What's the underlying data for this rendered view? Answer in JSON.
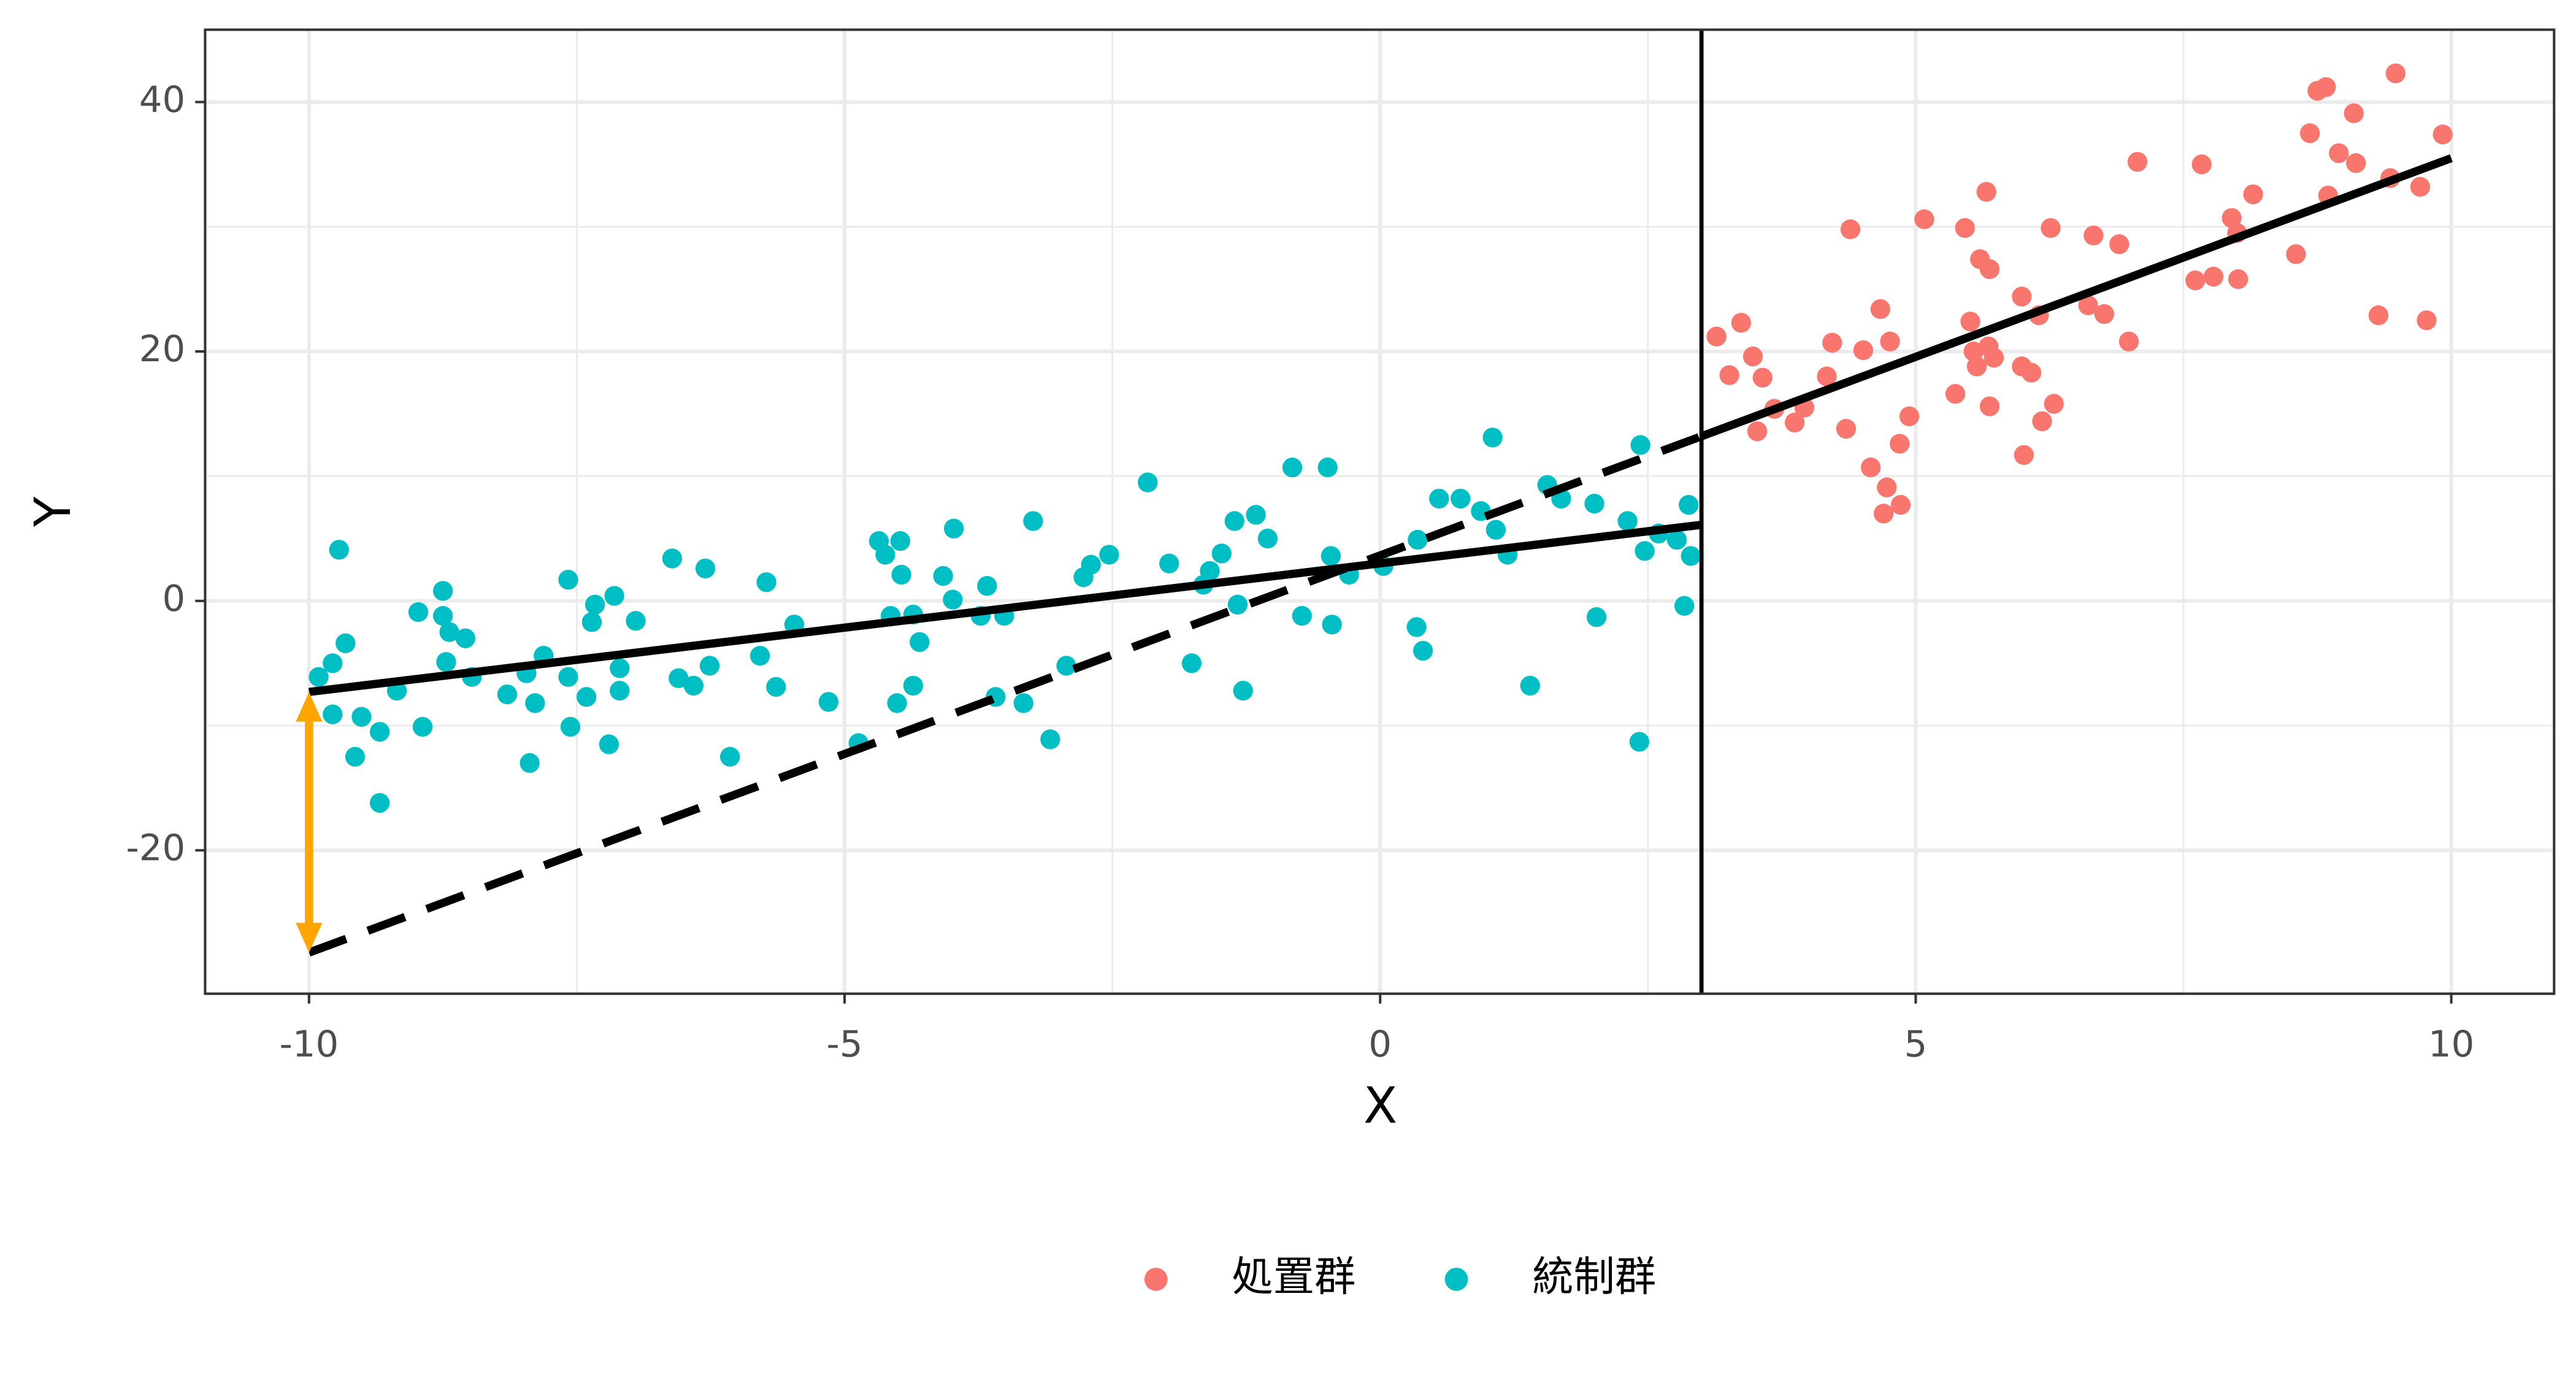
{
  "chart_data": {
    "type": "scatter",
    "x_label": "X",
    "y_label": "Y",
    "xlim": [
      -10.97,
      10.96
    ],
    "ylim": [
      -31.5,
      45.8
    ],
    "xticks": [
      -10,
      -5,
      0,
      5,
      10
    ],
    "yticks": [
      -20,
      0,
      20,
      40
    ],
    "minor_xticks": [
      -7.5,
      -2.5,
      2.5,
      7.5
    ],
    "minor_yticks": [
      -10,
      10,
      30
    ],
    "grid": true,
    "legend": "bottom",
    "series": [
      {
        "name": "処置群",
        "color": "#F8766D",
        "x": [
          3.14,
          3.26,
          3.37,
          3.48,
          3.52,
          3.57,
          3.68,
          3.87,
          3.96,
          4.17,
          4.22,
          4.35,
          4.39,
          4.51,
          4.58,
          4.67,
          4.7,
          4.73,
          4.76,
          4.85,
          4.86,
          4.94,
          5.08,
          5.37,
          5.46,
          5.51,
          5.54,
          5.57,
          5.6,
          5.66,
          5.68,
          5.69,
          5.69,
          5.73,
          5.99,
          5.99,
          6.01,
          6.08,
          6.15,
          6.18,
          6.26,
          6.29,
          6.61,
          6.66,
          6.76,
          6.9,
          6.99,
          7.07,
          7.67,
          7.61,
          7.78,
          7.95,
          8.0,
          8.01,
          8.15,
          8.55,
          8.68,
          8.75,
          8.83,
          8.85,
          8.95,
          9.09,
          9.11,
          9.32,
          9.43,
          9.48,
          9.71,
          9.77,
          9.92
        ],
        "values": [
          21.2,
          18.1,
          22.3,
          19.6,
          13.6,
          17.9,
          15.4,
          14.3,
          15.5,
          18.0,
          20.7,
          13.8,
          29.8,
          20.1,
          10.7,
          23.4,
          7.0,
          9.1,
          20.8,
          12.6,
          7.7,
          14.8,
          30.6,
          16.6,
          29.9,
          22.4,
          20.0,
          18.8,
          27.4,
          32.8,
          20.4,
          26.6,
          15.6,
          19.5,
          24.4,
          18.8,
          11.7,
          18.3,
          22.9,
          14.4,
          29.9,
          15.8,
          23.7,
          29.3,
          23.0,
          28.6,
          20.8,
          35.2,
          35.0,
          25.7,
          26.0,
          30.7,
          29.5,
          25.8,
          32.6,
          27.8,
          37.5,
          40.9,
          41.2,
          32.5,
          35.9,
          39.1,
          35.1,
          22.9,
          33.9,
          42.3,
          33.2,
          22.5,
          37.4
        ]
      },
      {
        "name": "統制群",
        "color": "#00BFC4",
        "x": [
          -9.91,
          -9.72,
          -9.78,
          -9.66,
          -9.78,
          -9.57,
          -9.51,
          -9.34,
          -9.34,
          -9.18,
          -8.98,
          -8.94,
          -8.75,
          -8.75,
          -8.69,
          -8.54,
          -8.72,
          -8.48,
          -8.15,
          -7.97,
          -7.94,
          -7.89,
          -7.81,
          -7.58,
          -7.58,
          -7.56,
          -7.41,
          -7.36,
          -7.33,
          -7.2,
          -7.15,
          -7.1,
          -7.1,
          -6.95,
          -6.61,
          -6.55,
          -6.41,
          -6.3,
          -6.26,
          -6.07,
          -5.79,
          -5.73,
          -5.64,
          -5.47,
          -5.15,
          -4.87,
          -4.68,
          -4.62,
          -4.57,
          -4.48,
          -4.47,
          -4.51,
          -4.36,
          -4.36,
          -4.3,
          -4.08,
          -3.98,
          -3.99,
          -3.73,
          -3.67,
          -3.59,
          -3.51,
          -3.33,
          -3.24,
          -3.08,
          -2.93,
          -2.77,
          -2.7,
          -2.53,
          -2.17,
          -1.97,
          -1.76,
          -1.65,
          -1.59,
          -1.48,
          -1.36,
          -1.33,
          -1.28,
          -1.16,
          -1.05,
          -0.82,
          -0.73,
          -0.49,
          -0.45,
          -0.46,
          -0.29,
          0.03,
          0.34,
          0.4,
          0.35,
          0.55,
          0.75,
          0.94,
          1.05,
          1.08,
          1.19,
          1.4,
          1.56,
          1.69,
          2.0,
          2.02,
          2.31,
          2.42,
          2.43,
          2.47,
          2.6,
          2.77,
          2.84,
          2.88,
          2.9
        ],
        "values": [
          -6.1,
          4.1,
          -5.0,
          -3.4,
          -9.1,
          -12.5,
          -9.3,
          -16.2,
          -10.5,
          -7.2,
          -0.9,
          -10.1,
          0.8,
          -1.2,
          -2.5,
          -3.0,
          -4.9,
          -6.1,
          -7.5,
          -5.8,
          -13.0,
          -8.2,
          -4.4,
          1.7,
          -6.1,
          -10.1,
          -7.7,
          -1.7,
          -0.3,
          -11.5,
          0.4,
          -5.4,
          -7.2,
          -1.6,
          3.4,
          -6.2,
          -6.8,
          2.6,
          -5.2,
          -12.5,
          -4.4,
          1.5,
          -6.9,
          -1.9,
          -8.1,
          -11.4,
          4.8,
          3.7,
          -1.2,
          4.8,
          2.1,
          -8.2,
          -6.8,
          -1.1,
          -3.3,
          2.0,
          5.8,
          0.1,
          -1.2,
          1.2,
          -7.7,
          -1.2,
          -8.2,
          6.4,
          -11.1,
          -5.2,
          1.9,
          2.9,
          3.7,
          9.5,
          3.0,
          -5.0,
          1.3,
          2.4,
          3.8,
          6.4,
          -0.3,
          -7.2,
          6.9,
          5.0,
          10.7,
          -1.2,
          10.7,
          -1.9,
          3.6,
          2.1,
          2.8,
          -2.1,
          -4.0,
          4.9,
          8.2,
          8.2,
          7.2,
          13.1,
          5.7,
          3.7,
          -6.8,
          9.3,
          8.2,
          7.8,
          -1.3,
          6.4,
          -11.3,
          12.5,
          4.0,
          5.4,
          4.9,
          -0.4,
          7.7,
          3.6
        ]
      }
    ],
    "lines": [
      {
        "x": [
          -10,
          3
        ],
        "values": [
          -7.3,
          6.1
        ],
        "color": "#000000",
        "dashed": false
      },
      {
        "x": [
          3,
          10
        ],
        "values": [
          13.2,
          35.5
        ],
        "color": "#000000",
        "dashed": false
      },
      {
        "x": [
          -10,
          3
        ],
        "values": [
          -28.2,
          13.2
        ],
        "color": "#000000",
        "dashed": true
      }
    ],
    "vlines": [
      3
    ],
    "arrows": [
      {
        "x": -10,
        "from": -7.3,
        "to": -28.2,
        "color": "#FFA500"
      }
    ]
  }
}
